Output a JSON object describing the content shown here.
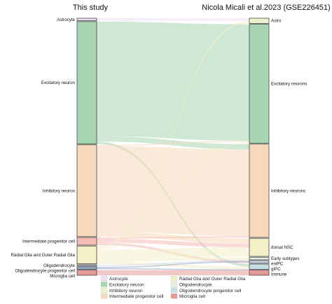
{
  "chart_data": {
    "type": "sankey",
    "left_title": "This study",
    "right_title": "Nicola Micali et al.2023 (GSE226451)",
    "left_nodes": [
      {
        "label": "Astrocyte",
        "value": 1.0,
        "color": "#ecdff0"
      },
      {
        "label": "Excitatory neuron",
        "value": 48.0,
        "color": "#a8d5b1"
      },
      {
        "label": "Inhibitory neuron",
        "value": 36.0,
        "color": "#f6d8bb"
      },
      {
        "label": "Intermediate progenitor cell",
        "value": 3.0,
        "color": "#f5bcb4"
      },
      {
        "label": "Radial Glia and Outer Radial Glia",
        "value": 7.0,
        "color": "#f3efc7"
      },
      {
        "label": "Oligodendrocyte",
        "value": 0.5,
        "color": "#cdd9ea"
      },
      {
        "label": "Oligodendrocyte progenitor cell",
        "value": 1.0,
        "color": "#93a9c6"
      },
      {
        "label": "Microglia cell",
        "value": 2.0,
        "color": "#e69a98"
      }
    ],
    "right_nodes": [
      {
        "label": "Astro",
        "value": 2.0,
        "color": "#ecf3cc"
      },
      {
        "label": "Excitatory neurons",
        "value": 46.0,
        "color": "#a8d5b1"
      },
      {
        "label": "Inhibitory neurons",
        "value": 36.0,
        "color": "#f6d8bb"
      },
      {
        "label": "dorsal NSC",
        "value": 7.0,
        "color": "#f3efc7"
      },
      {
        "label": "Early subtypes",
        "value": 1.0,
        "color": "#e8eee0"
      },
      {
        "label": "enIPC",
        "value": 1.0,
        "color": "#cdd9ea"
      },
      {
        "label": "gIPC",
        "value": 2.0,
        "color": "#c9dfe4"
      },
      {
        "label": "Immune",
        "value": 2.0,
        "color": "#e69a98"
      }
    ],
    "flows": [
      {
        "from": "Astrocyte",
        "to": "Astro",
        "value": 1.0
      },
      {
        "from": "Excitatory neuron",
        "to": "Excitatory neurons",
        "value": 45.0
      },
      {
        "from": "Excitatory neuron",
        "to": "Inhibitory neurons",
        "value": 2.0
      },
      {
        "from": "Excitatory neuron",
        "to": "gIPC",
        "value": 1.0
      },
      {
        "from": "Inhibitory neuron",
        "to": "Excitatory neurons",
        "value": 0.5
      },
      {
        "from": "Inhibitory neuron",
        "to": "Inhibitory neurons",
        "value": 33.5
      },
      {
        "from": "Inhibitory neuron",
        "to": "dorsal NSC",
        "value": 2.0
      },
      {
        "from": "Intermediate progenitor cell",
        "to": "Inhibitory neurons",
        "value": 0.5
      },
      {
        "from": "Intermediate progenitor cell",
        "to": "dorsal NSC",
        "value": 1.5
      },
      {
        "from": "Intermediate progenitor cell",
        "to": "enIPC",
        "value": 1.0
      },
      {
        "from": "Radial Glia and Outer Radial Glia",
        "to": "Astro",
        "value": 1.0
      },
      {
        "from": "Radial Glia and Outer Radial Glia",
        "to": "Excitatory neurons",
        "value": 0.5
      },
      {
        "from": "Radial Glia and Outer Radial Glia",
        "to": "dorsal NSC",
        "value": 3.5
      },
      {
        "from": "Radial Glia and Outer Radial Glia",
        "to": "Early subtypes",
        "value": 1.0
      },
      {
        "from": "Radial Glia and Outer Radial Glia",
        "to": "gIPC",
        "value": 1.0
      },
      {
        "from": "Oligodendrocyte",
        "to": "Early subtypes",
        "value": 0.5
      },
      {
        "from": "Oligodendrocyte progenitor cell",
        "to": "Early subtypes",
        "value": 0.5
      },
      {
        "from": "Oligodendrocyte progenitor cell",
        "to": "gIPC",
        "value": 0.5
      },
      {
        "from": "Microglia cell",
        "to": "Immune",
        "value": 2.0
      }
    ],
    "legend": [
      {
        "label": "Astrocyte",
        "color": "#ecdff0"
      },
      {
        "label": "Excitatory neuron",
        "color": "#a8d5b1"
      },
      {
        "label": "Inhibitory neuron",
        "color": "#ecf3cc"
      },
      {
        "label": "Intermediate progenitor cell",
        "color": "#f6d8bb"
      },
      {
        "label": "Radial Glia and Outer Radial Glia",
        "color": "#f3efc7"
      },
      {
        "label": "Oligodendrocyte",
        "color": "#e8eee0"
      },
      {
        "label": "Oligodendrocyte progenitor cell",
        "color": "#c9dfe4"
      },
      {
        "label": "Microglia cell",
        "color": "#e69a98"
      }
    ]
  }
}
